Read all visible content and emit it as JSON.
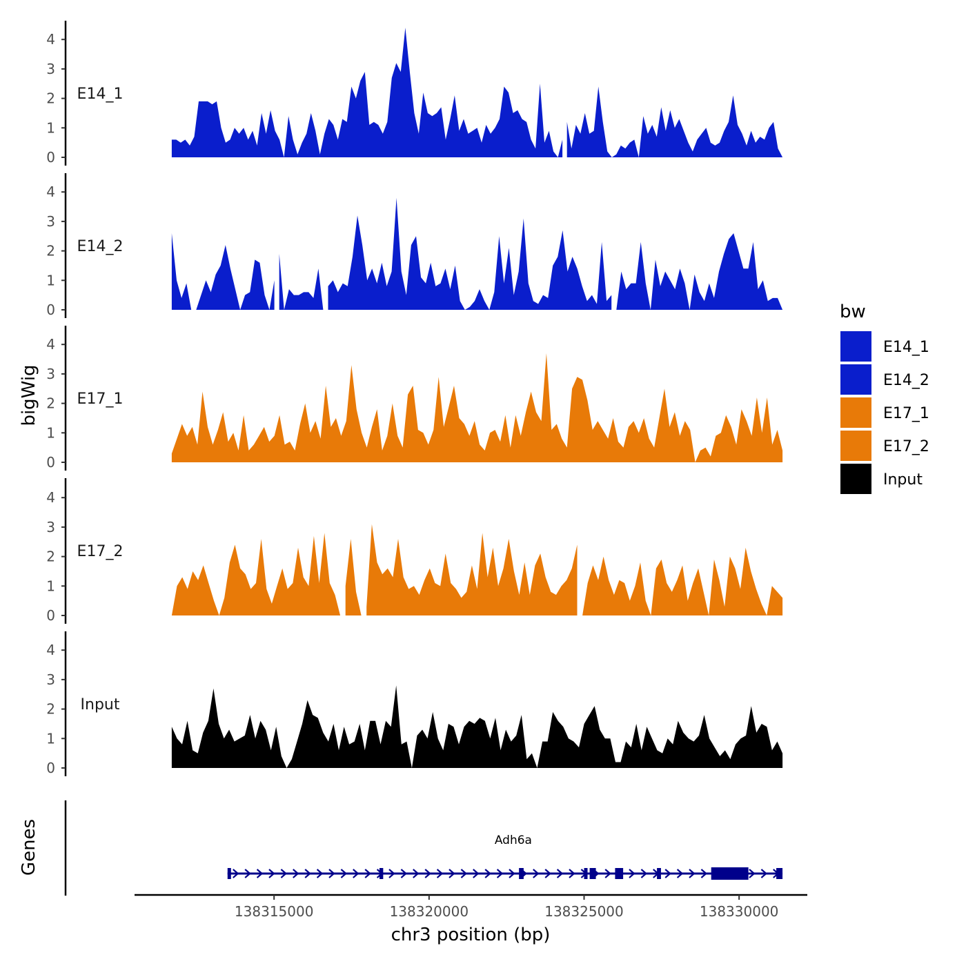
{
  "chart_data": {
    "type": "area",
    "chromosome": "chr3",
    "y_axis_title": "bigWig",
    "genes_axis_title": "Genes",
    "x_axis_title": "chr3 position (bp)",
    "x_range": [
      138310500,
      138332200
    ],
    "y_range": [
      0,
      4.5
    ],
    "y_ticks": [
      0,
      1,
      2,
      3,
      4
    ],
    "x_ticks": [
      138315000,
      138320000,
      138325000,
      138330000
    ],
    "x_tick_labels": [
      "138315000",
      "138320000",
      "138325000",
      "138330000"
    ],
    "legend_title": "bw",
    "legend": [
      {
        "name": "E14_1",
        "color": "#0A1ECC"
      },
      {
        "name": "E14_2",
        "color": "#0A1ECC"
      },
      {
        "name": "E17_1",
        "color": "#E87A08"
      },
      {
        "name": "E17_2",
        "color": "#E87A08"
      },
      {
        "name": "Input",
        "color": "#000000"
      }
    ],
    "series": [
      {
        "name": "E14_1",
        "color": "#0A1ECC",
        "x_start": 138311700,
        "x_end": 138331400,
        "values": [
          0.6,
          0.6,
          0.5,
          0.6,
          0.4,
          0.7,
          1.9,
          1.9,
          1.9,
          1.8,
          1.9,
          1.0,
          0.5,
          0.6,
          1.0,
          0.8,
          1.0,
          0.6,
          0.9,
          0.4,
          1.5,
          0.8,
          1.6,
          0.9,
          0.6,
          0.0,
          1.4,
          0.6,
          0.1,
          0.5,
          0.8,
          1.5,
          0.9,
          0.1,
          0.8,
          1.3,
          1.1,
          0.6,
          1.3,
          1.2,
          2.4,
          2.0,
          2.6,
          2.9,
          1.1,
          1.2,
          1.1,
          0.8,
          1.2,
          2.7,
          3.2,
          2.9,
          4.4,
          2.9,
          1.5,
          0.8,
          2.2,
          1.5,
          1.4,
          1.5,
          1.7,
          0.6,
          1.3,
          2.1,
          0.9,
          1.3,
          0.8,
          0.9,
          1.0,
          0.5,
          1.1,
          0.8,
          1.0,
          1.3,
          2.4,
          2.2,
          1.5,
          1.6,
          1.3,
          1.2,
          0.6,
          0.3,
          2.5,
          0.5,
          0.9,
          0.2,
          0.0,
          0.6,
          1.2,
          0.3,
          1.1,
          0.8,
          1.5,
          0.8,
          0.9,
          2.4,
          1.2,
          0.2,
          0.0,
          0.1,
          0.4,
          0.3,
          0.5,
          0.6,
          0.0,
          1.4,
          0.8,
          1.1,
          0.7,
          1.7,
          0.9,
          1.6,
          1.0,
          1.3,
          0.9,
          0.5,
          0.2,
          0.6,
          0.8,
          1.0,
          0.5,
          0.4,
          0.5,
          0.9,
          1.2,
          2.1,
          1.1,
          0.8,
          0.4,
          0.9,
          0.5,
          0.7,
          0.6,
          1.0,
          1.2,
          0.3,
          0.0
        ],
        "gaps_after_index": [
          87
        ]
      },
      {
        "name": "E14_2",
        "color": "#0A1ECC",
        "x_start": 138311700,
        "x_end": 138331400,
        "values": [
          2.6,
          1.0,
          0.4,
          0.9,
          0.0,
          0.0,
          0.5,
          1.0,
          0.6,
          1.2,
          1.5,
          2.2,
          1.4,
          0.7,
          0.0,
          0.5,
          0.6,
          1.7,
          1.6,
          0.5,
          0.0,
          1.0,
          1.9,
          0.0,
          0.7,
          0.5,
          0.5,
          0.6,
          0.6,
          0.4,
          1.4,
          0.0,
          0.8,
          1.0,
          0.6,
          0.9,
          0.8,
          1.8,
          3.2,
          2.2,
          1.0,
          1.4,
          0.9,
          1.6,
          0.8,
          1.3,
          3.8,
          1.3,
          0.5,
          2.2,
          2.5,
          1.1,
          0.9,
          1.6,
          0.8,
          0.9,
          1.4,
          0.7,
          1.5,
          0.3,
          0.0,
          0.1,
          0.3,
          0.7,
          0.3,
          0.0,
          0.6,
          2.5,
          0.9,
          2.1,
          0.5,
          1.3,
          3.1,
          0.9,
          0.3,
          0.2,
          0.5,
          0.4,
          1.5,
          1.8,
          2.7,
          1.3,
          1.8,
          1.4,
          0.8,
          0.3,
          0.5,
          0.2,
          2.3,
          0.3,
          0.5,
          0.0,
          1.3,
          0.7,
          0.9,
          0.9,
          2.3,
          0.9,
          0.0,
          1.7,
          0.8,
          1.3,
          1.0,
          0.7,
          1.4,
          0.9,
          0.0,
          1.2,
          0.6,
          0.3,
          0.9,
          0.4,
          1.3,
          1.9,
          2.4,
          2.6,
          2.0,
          1.4,
          1.4,
          2.3,
          0.7,
          1.0,
          0.3,
          0.4,
          0.4,
          0.0
        ],
        "gaps_after_index": [
          4,
          21,
          31,
          90
        ]
      },
      {
        "name": "E17_1",
        "color": "#E87A08",
        "x_start": 138311700,
        "x_end": 138331400,
        "values": [
          0.3,
          0.8,
          1.3,
          0.9,
          1.2,
          0.6,
          2.4,
          1.2,
          0.6,
          1.1,
          1.7,
          0.7,
          1.0,
          0.4,
          1.6,
          0.4,
          0.6,
          0.9,
          1.2,
          0.7,
          0.9,
          1.6,
          0.6,
          0.7,
          0.4,
          1.3,
          2.0,
          1.0,
          1.4,
          0.8,
          2.6,
          1.2,
          1.5,
          0.9,
          1.4,
          3.3,
          1.8,
          1.0,
          0.5,
          1.2,
          1.8,
          0.4,
          0.9,
          2.0,
          0.9,
          0.5,
          2.3,
          2.6,
          1.1,
          1.0,
          0.6,
          1.1,
          2.9,
          1.2,
          1.9,
          2.6,
          1.5,
          1.3,
          0.9,
          1.4,
          0.6,
          0.4,
          1.0,
          1.1,
          0.7,
          1.6,
          0.5,
          1.6,
          0.9,
          1.7,
          2.4,
          1.7,
          1.4,
          3.7,
          1.1,
          1.3,
          0.8,
          0.5,
          2.5,
          2.9,
          2.8,
          2.1,
          1.1,
          1.4,
          1.1,
          0.8,
          1.5,
          0.7,
          0.5,
          1.2,
          1.4,
          1.0,
          1.5,
          0.8,
          0.5,
          1.5,
          2.5,
          1.2,
          1.7,
          0.9,
          1.4,
          1.1,
          0.0,
          0.4,
          0.5,
          0.2,
          0.9,
          1.0,
          1.6,
          1.2,
          0.6,
          1.8,
          1.4,
          0.9,
          2.2,
          1.0,
          2.2,
          0.6,
          1.1,
          0.4
        ],
        "gaps_after_index": []
      },
      {
        "name": "E17_2",
        "color": "#E87A08",
        "x_start": 138311700,
        "x_end": 138331400,
        "values": [
          0.0,
          1.0,
          1.3,
          0.9,
          1.5,
          1.2,
          1.7,
          1.1,
          0.5,
          0.0,
          0.6,
          1.8,
          2.4,
          1.6,
          1.4,
          0.9,
          1.1,
          2.6,
          0.9,
          0.4,
          1.0,
          1.6,
          0.9,
          1.1,
          2.3,
          1.3,
          1.0,
          2.7,
          1.1,
          2.8,
          1.1,
          0.7,
          0.0,
          1.0,
          2.6,
          0.8,
          0.0,
          0.3,
          3.1,
          1.8,
          1.4,
          1.6,
          1.3,
          2.6,
          1.3,
          0.9,
          1.0,
          0.7,
          1.2,
          1.6,
          1.1,
          1.0,
          2.1,
          1.1,
          0.9,
          0.6,
          0.8,
          1.7,
          0.9,
          2.8,
          1.3,
          2.3,
          1.0,
          1.6,
          2.6,
          1.5,
          0.7,
          1.8,
          0.7,
          1.7,
          2.1,
          1.3,
          0.8,
          0.7,
          1.0,
          1.2,
          1.6,
          2.4,
          0.0,
          1.1,
          1.7,
          1.2,
          2.0,
          1.2,
          0.7,
          1.2,
          1.1,
          0.5,
          1.0,
          1.8,
          0.5,
          0.0,
          1.6,
          1.9,
          1.1,
          0.8,
          1.2,
          1.7,
          0.5,
          1.1,
          1.6,
          0.8,
          0.0,
          1.9,
          1.2,
          0.3,
          2.0,
          1.6,
          0.9,
          2.3,
          1.5,
          0.9,
          0.4,
          0.0,
          1.0,
          0.8,
          0.6
        ],
        "gaps_after_index": [
          32,
          36,
          77
        ]
      },
      {
        "name": "Input",
        "color": "#000000",
        "x_start": 138311700,
        "x_end": 138331400,
        "values": [
          1.4,
          1.0,
          0.8,
          1.6,
          0.6,
          0.5,
          1.2,
          1.6,
          2.7,
          1.5,
          1.0,
          1.3,
          0.9,
          1.0,
          1.1,
          1.8,
          1.0,
          1.6,
          1.3,
          0.6,
          1.4,
          0.4,
          0.0,
          0.3,
          0.9,
          1.5,
          2.3,
          1.8,
          1.7,
          1.2,
          0.9,
          1.5,
          0.6,
          1.4,
          0.8,
          0.9,
          1.5,
          0.6,
          1.6,
          1.6,
          0.8,
          1.6,
          1.4,
          2.8,
          0.8,
          0.9,
          0.0,
          1.1,
          1.3,
          1.0,
          1.9,
          1.0,
          0.6,
          1.5,
          1.4,
          0.8,
          1.4,
          1.6,
          1.5,
          1.7,
          1.6,
          1.0,
          1.7,
          0.6,
          1.3,
          0.9,
          1.1,
          1.8,
          0.3,
          0.5,
          0.0,
          0.9,
          0.9,
          1.9,
          1.6,
          1.4,
          1.0,
          0.9,
          0.7,
          1.5,
          1.8,
          2.1,
          1.3,
          1.0,
          1.0,
          0.2,
          0.2,
          0.9,
          0.7,
          1.5,
          0.6,
          1.4,
          1.0,
          0.6,
          0.5,
          1.0,
          0.8,
          1.6,
          1.2,
          1.0,
          0.9,
          1.1,
          1.8,
          1.0,
          0.7,
          0.4,
          0.6,
          0.3,
          0.8,
          1.0,
          1.1,
          2.1,
          1.2,
          1.5,
          1.4,
          0.6,
          0.9,
          0.5
        ],
        "gaps_after_index": []
      }
    ],
    "gene": {
      "name": "Adh6a",
      "strand": "+",
      "color": "#00008B",
      "start": 138313500,
      "end": 138331400,
      "exons": [
        [
          138313500,
          138313540
        ],
        [
          138318400,
          138318520
        ],
        [
          138322900,
          138323050
        ],
        [
          138325000,
          138325080
        ],
        [
          138325180,
          138325380
        ],
        [
          138326000,
          138326260
        ],
        [
          138327350,
          138327480
        ],
        [
          138329100,
          138330300
        ],
        [
          138331200,
          138331400
        ]
      ]
    }
  }
}
